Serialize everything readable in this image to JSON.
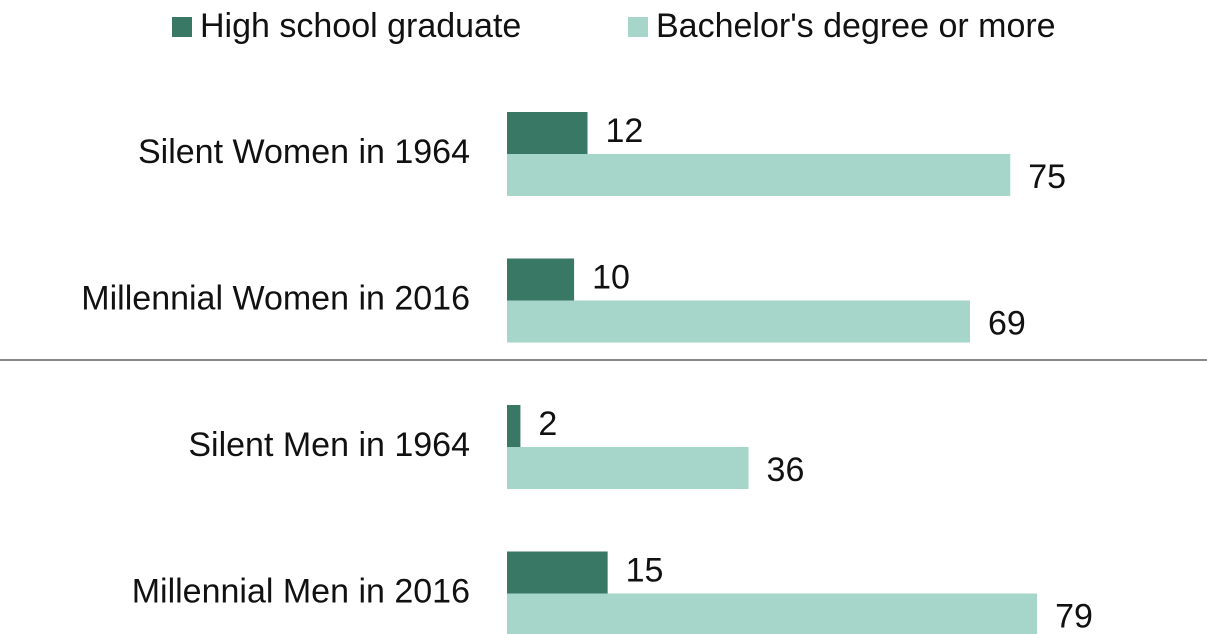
{
  "chart_data": {
    "type": "bar",
    "orientation": "horizontal",
    "categories": [
      "Silent Women in 1964",
      "Millennial Women in 2016",
      "Silent Men in 1964",
      "Millennial Men in 2016"
    ],
    "series": [
      {
        "name": "High school graduate",
        "color": "#3a7866",
        "values": [
          12,
          10,
          2,
          15
        ]
      },
      {
        "name": "Bachelor's degree or more",
        "color": "#a6d5c9",
        "values": [
          75,
          69,
          36,
          79
        ]
      }
    ]
  }
}
